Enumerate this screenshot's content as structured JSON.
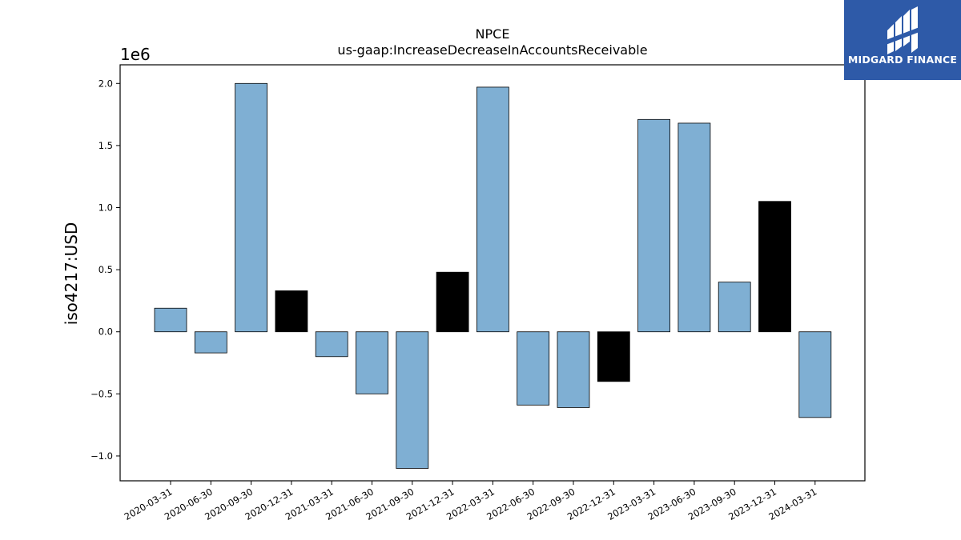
{
  "logo": {
    "text": "MIDGARD FINANCE"
  },
  "chart_data": {
    "type": "bar",
    "title": "NPCE",
    "subtitle": "us-gaap:IncreaseDecreaseInAccountsReceivable",
    "xlabel": "",
    "ylabel": "iso4217:USD",
    "y_scale_label": "1e6",
    "ylim": [
      -1.2,
      2.15
    ],
    "yticks": [
      -1.0,
      -0.5,
      0.0,
      0.5,
      1.0,
      1.5,
      2.0
    ],
    "ytick_labels": [
      "−1.0",
      "−0.5",
      "0.0",
      "0.5",
      "1.0",
      "1.5",
      "2.0"
    ],
    "grid": false,
    "categories": [
      "2020-03-31",
      "2020-06-30",
      "2020-09-30",
      "2020-12-31",
      "2021-03-31",
      "2021-06-30",
      "2021-09-30",
      "2021-12-31",
      "2022-03-31",
      "2022-06-30",
      "2022-09-30",
      "2022-12-31",
      "2023-03-31",
      "2023-06-30",
      "2023-09-30",
      "2023-12-31",
      "2024-03-31"
    ],
    "values": [
      0.19,
      -0.17,
      2.0,
      0.33,
      -0.2,
      -0.5,
      -1.1,
      0.48,
      1.97,
      -0.59,
      -0.61,
      -0.4,
      1.71,
      1.68,
      0.4,
      1.05,
      -0.69
    ],
    "bar_colors": [
      "#7fafd3",
      "#7fafd3",
      "#7fafd3",
      "#000000",
      "#7fafd3",
      "#7fafd3",
      "#7fafd3",
      "#000000",
      "#7fafd3",
      "#7fafd3",
      "#7fafd3",
      "#000000",
      "#7fafd3",
      "#7fafd3",
      "#7fafd3",
      "#000000",
      "#7fafd3"
    ],
    "colors": {
      "quarterly": "#7fafd3",
      "year_end": "#000000",
      "edge": "#000000"
    }
  }
}
